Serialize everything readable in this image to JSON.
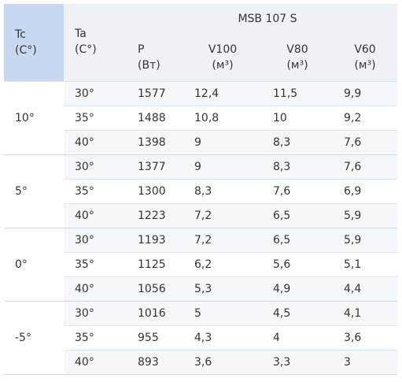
{
  "header": {
    "tc": [
      "Tc",
      "(C°)"
    ],
    "ta": [
      "Ta",
      "(C°)"
    ],
    "model": "MSB 107 S",
    "columns": [
      [
        "P",
        "(Вт)"
      ],
      [
        "V100",
        "(м³)"
      ],
      [
        "V80",
        "(м³)"
      ],
      [
        "V60",
        "(м³)"
      ]
    ]
  },
  "groups": [
    {
      "tc": "10°",
      "rows": [
        [
          "30°",
          "1577",
          "12,4",
          "11,5",
          "9,9"
        ],
        [
          "35°",
          "1488",
          "10,8",
          "10",
          "9,2"
        ],
        [
          "40°",
          "1398",
          "9",
          "8,3",
          "7,6"
        ]
      ]
    },
    {
      "tc": "5°",
      "rows": [
        [
          "30°",
          "1377",
          "9",
          "8,3",
          "7,6"
        ],
        [
          "35°",
          "1300",
          "8,3",
          "7,6",
          "6,9"
        ],
        [
          "40°",
          "1223",
          "7,2",
          "6,5",
          "5,9"
        ]
      ]
    },
    {
      "tc": "0°",
      "rows": [
        [
          "30°",
          "1193",
          "7,2",
          "6,5",
          "5,9"
        ],
        [
          "35°",
          "1125",
          "6,2",
          "5,6",
          "5,1"
        ],
        [
          "40°",
          "1056",
          "5,3",
          "4,9",
          "4,4"
        ]
      ]
    },
    {
      "tc": "-5°",
      "rows": [
        [
          "30°",
          "1016",
          "5",
          "4,5",
          "4,1"
        ],
        [
          "35°",
          "955",
          "4,3",
          "4",
          "3,6"
        ],
        [
          "40°",
          "893",
          "3,6",
          "3,3",
          "3"
        ]
      ]
    }
  ]
}
